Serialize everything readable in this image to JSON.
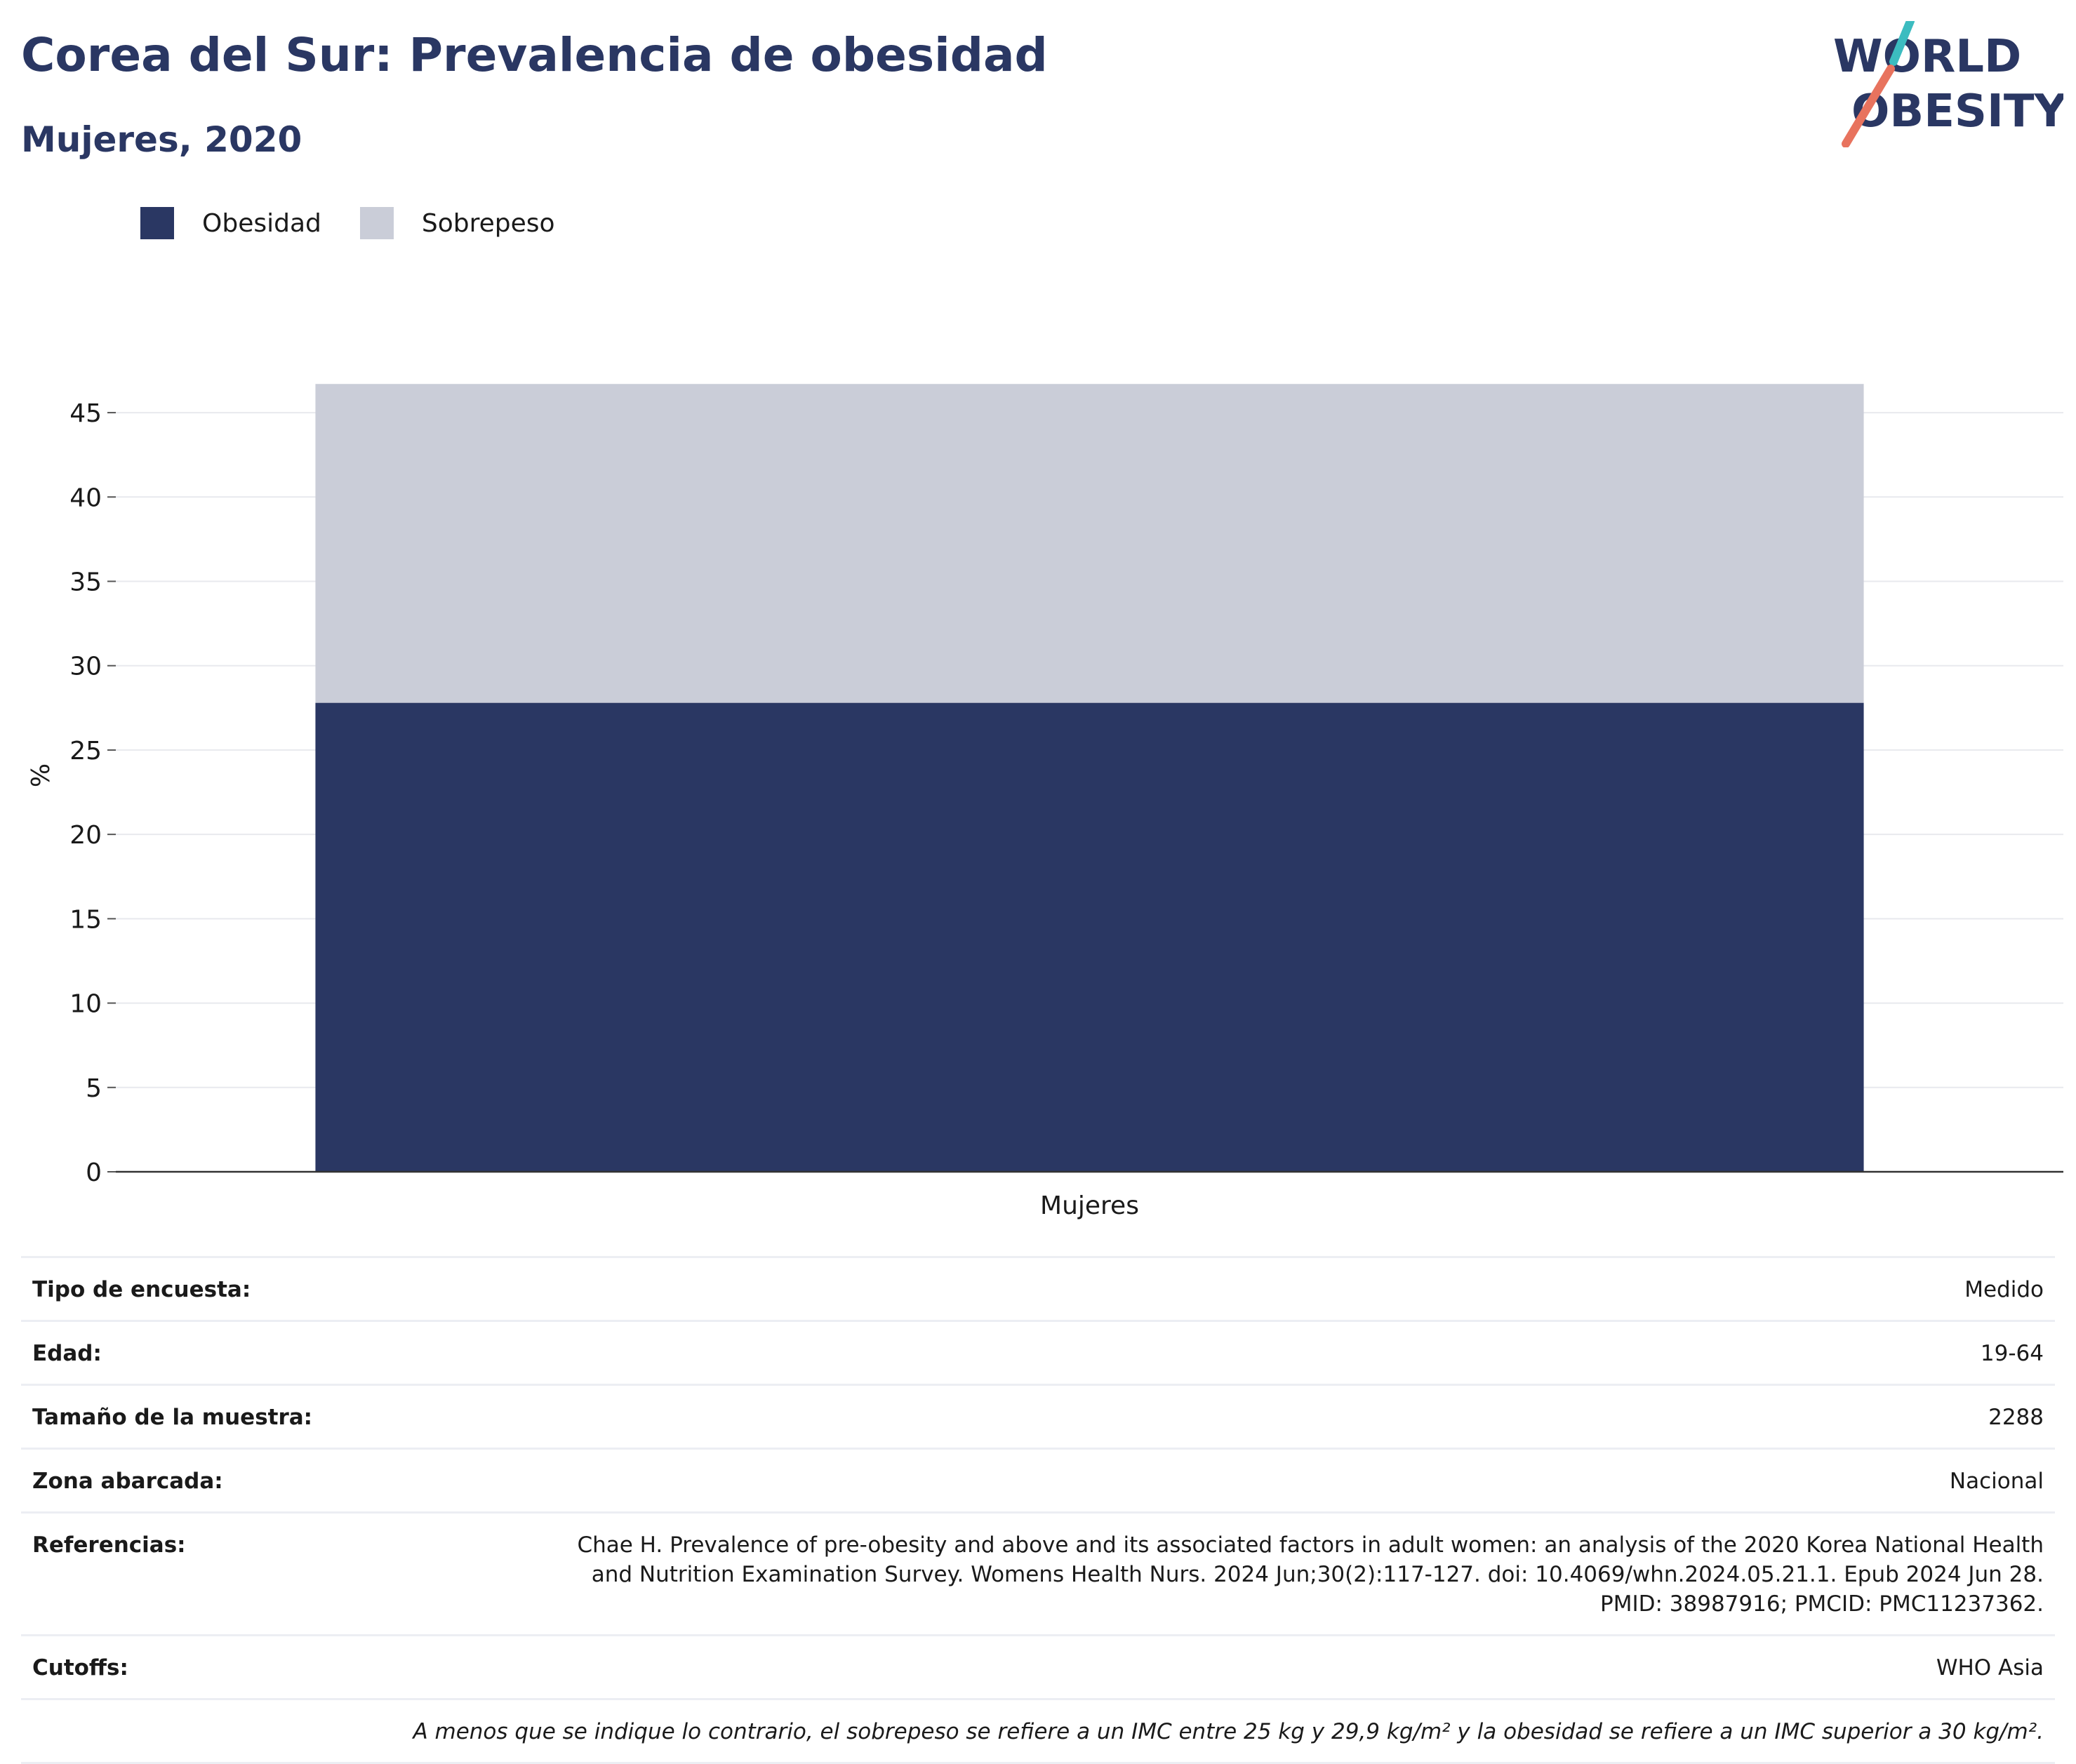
{
  "header": {
    "title": "Corea del Sur: Prevalencia de obesidad",
    "subtitle": "Mujeres, 2020",
    "logo_line1": "WORLD",
    "logo_line2": "OBESITY"
  },
  "legend": [
    {
      "label": "Obesidad",
      "color": "#2a3763"
    },
    {
      "label": "Sobrepeso",
      "color": "#cacdd8"
    }
  ],
  "chart_data": {
    "type": "bar",
    "stacked": true,
    "categories": [
      "Mujeres"
    ],
    "series": [
      {
        "name": "Obesidad",
        "values": [
          27.8
        ],
        "color": "#2a3763"
      },
      {
        "name": "Sobrepeso",
        "values": [
          18.9
        ],
        "color": "#cacdd8"
      }
    ],
    "title": "Corea del Sur: Prevalencia de obesidad",
    "subtitle": "Mujeres, 2020",
    "xlabel": "",
    "ylabel": "%",
    "ylim": [
      0,
      47
    ],
    "yticks": [
      0,
      5,
      10,
      15,
      20,
      25,
      30,
      35,
      40,
      45
    ],
    "grid": true,
    "legend_position": "top-left"
  },
  "info": {
    "rows": [
      {
        "key": "Tipo de encuesta:",
        "value": "Medido"
      },
      {
        "key": "Edad:",
        "value": "19-64"
      },
      {
        "key": "Tamaño de la muestra:",
        "value": "2288"
      },
      {
        "key": "Zona abarcada:",
        "value": "Nacional"
      },
      {
        "key": "Referencias:",
        "value": "Chae H. Prevalence of pre-obesity and above and its associated factors in adult women: an analysis of the 2020 Korea National Health and Nutrition Examination Survey. Womens Health Nurs. 2024 Jun;30(2):117-127. doi: 10.4069/whn.2024.05.21.1. Epub 2024 Jun 28. PMID: 38987916; PMCID: PMC11237362."
      },
      {
        "key": "Cutoffs:",
        "value": "WHO Asia"
      }
    ],
    "note": "A menos que se indique lo contrario, el sobrepeso se refiere a un IMC entre 25 kg y 29,9 kg/m² y la obesidad se refiere a un IMC superior a 30 kg/m²."
  }
}
